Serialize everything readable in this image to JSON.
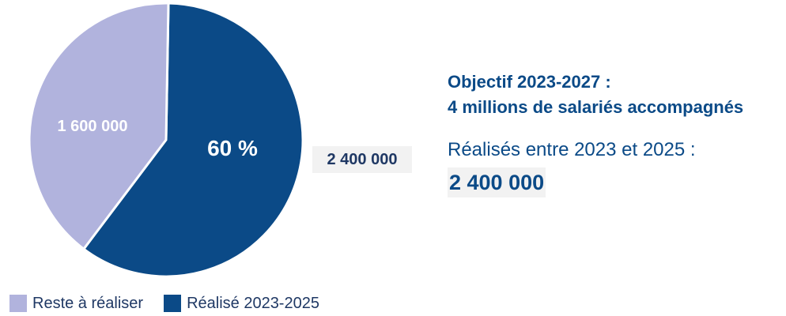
{
  "chart_data": {
    "type": "pie",
    "slices": [
      {
        "label": "Réalisé 2023-2025",
        "value": 2400000,
        "value_text": "2 400 000",
        "percent_label": "60 %",
        "color": "#0b4a87"
      },
      {
        "label": "Reste à réaliser",
        "value": 1600000,
        "value_text": "1 600 000",
        "color": "#b1b3dd"
      }
    ],
    "legend": [
      "Reste à réaliser",
      "Réalisé 2023-2025"
    ],
    "legend_position": "bottom-left"
  },
  "side_panel": {
    "objective_line1": "Objectif 2023-2027 :",
    "objective_line2": "4 millions de salariés accompagnés",
    "realised_caption": "Réalisés entre 2023 et 2025 :",
    "realised_value": "2 400 000"
  },
  "colors": {
    "dark_blue": "#0b4a87",
    "light_lavender": "#b1b3dd",
    "label_bg": "#f2f2f2"
  }
}
